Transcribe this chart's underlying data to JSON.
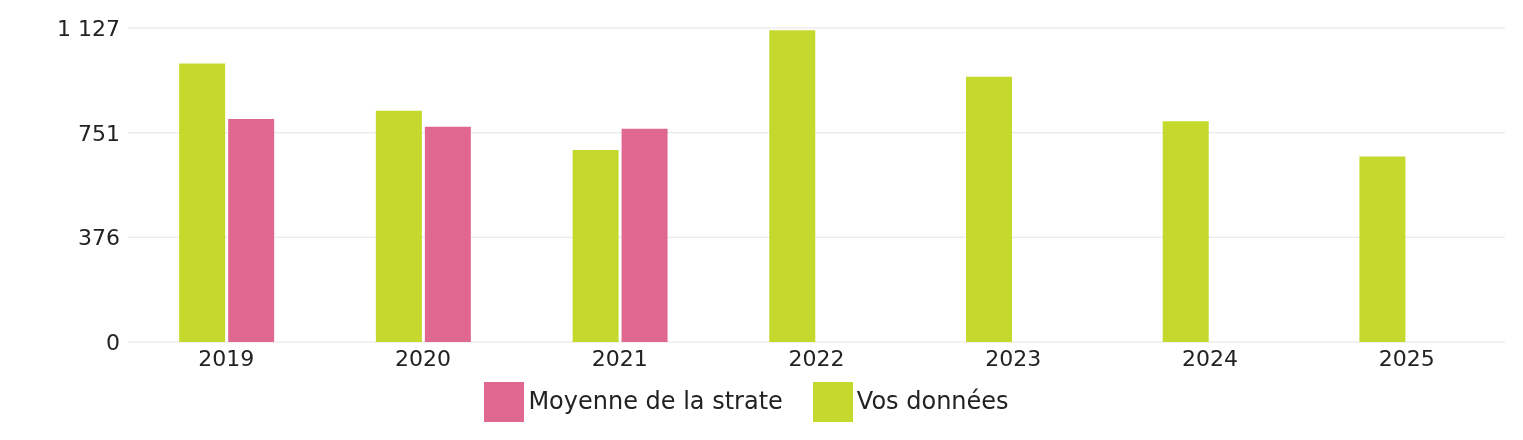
{
  "chart_data": {
    "type": "bar",
    "categories": [
      "2019",
      "2020",
      "2021",
      "2022",
      "2023",
      "2024",
      "2025"
    ],
    "series": [
      {
        "name": "Vos données",
        "color": "#c5d92d",
        "values": [
          1000,
          830,
          689,
          1119,
          952,
          792,
          666
        ]
      },
      {
        "name": "Moyenne de la strate",
        "color": "#e06890",
        "values": [
          800,
          773,
          765,
          null,
          null,
          null,
          null
        ]
      }
    ],
    "ylim": [
      0,
      1127
    ],
    "yticks": [
      0,
      376,
      751,
      {
        "value": 1127,
        "label": "1 127"
      }
    ],
    "grid": "y",
    "legend": "bottom"
  }
}
